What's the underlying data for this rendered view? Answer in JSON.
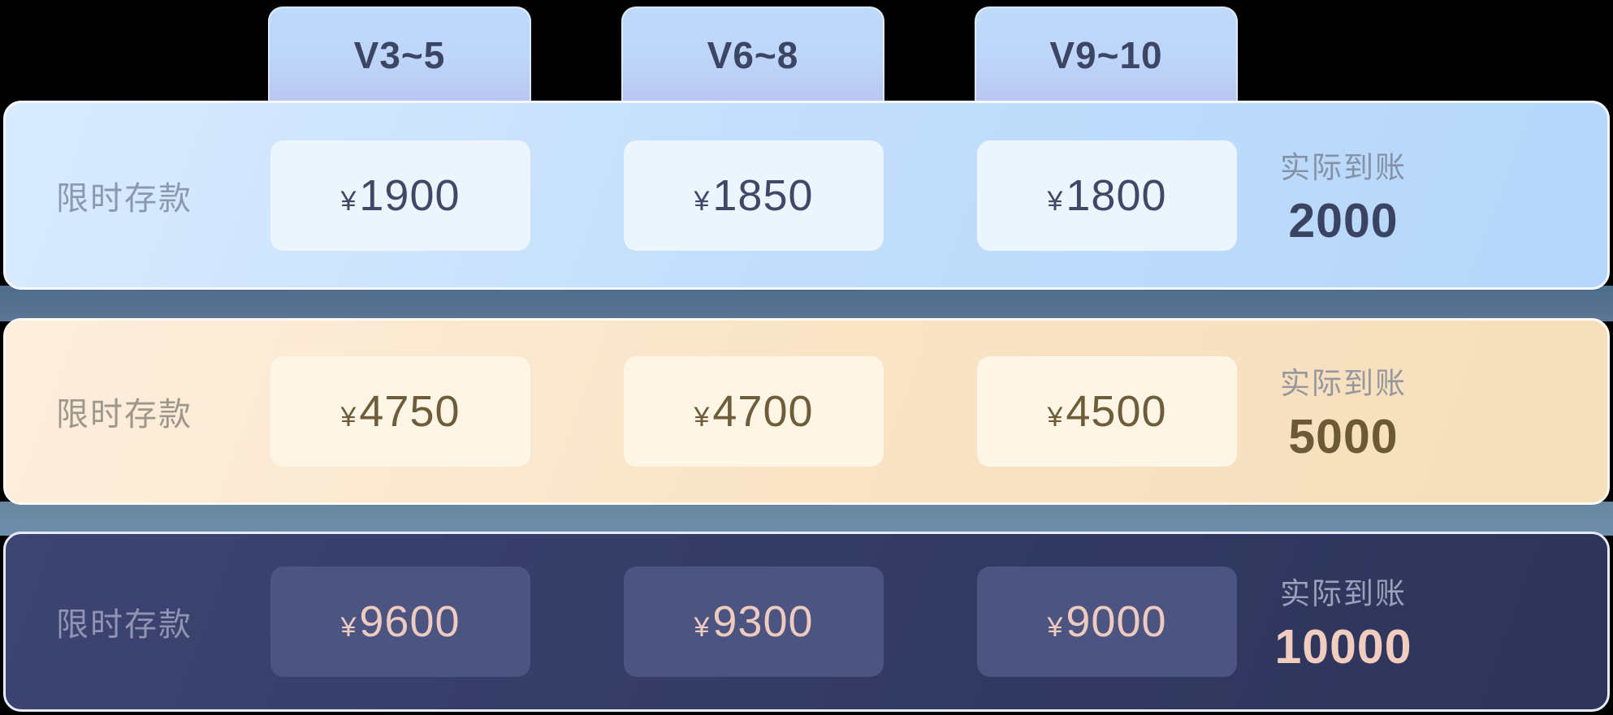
{
  "tiers": [
    "V3~5",
    "V6~8",
    "V9~10"
  ],
  "rows": [
    {
      "label": "限时存款",
      "currency": "¥",
      "values": [
        "1900",
        "1850",
        "1800"
      ],
      "actual_label": "实际到账",
      "actual_value": "2000",
      "theme_color": "#b5d6fa"
    },
    {
      "label": "限时存款",
      "currency": "¥",
      "values": [
        "4750",
        "4700",
        "4500"
      ],
      "actual_label": "实际到账",
      "actual_value": "5000",
      "theme_color": "#f5deba"
    },
    {
      "label": "限时存款",
      "currency": "¥",
      "values": [
        "9600",
        "9300",
        "9000"
      ],
      "actual_label": "实际到账",
      "actual_value": "10000",
      "theme_color": "#343b64"
    }
  ],
  "colors": {
    "tab_bg": "#bdd5f9",
    "tab_text": "#3d4564",
    "separator_1": "#54708f",
    "separator_2": "#6f8eac"
  }
}
